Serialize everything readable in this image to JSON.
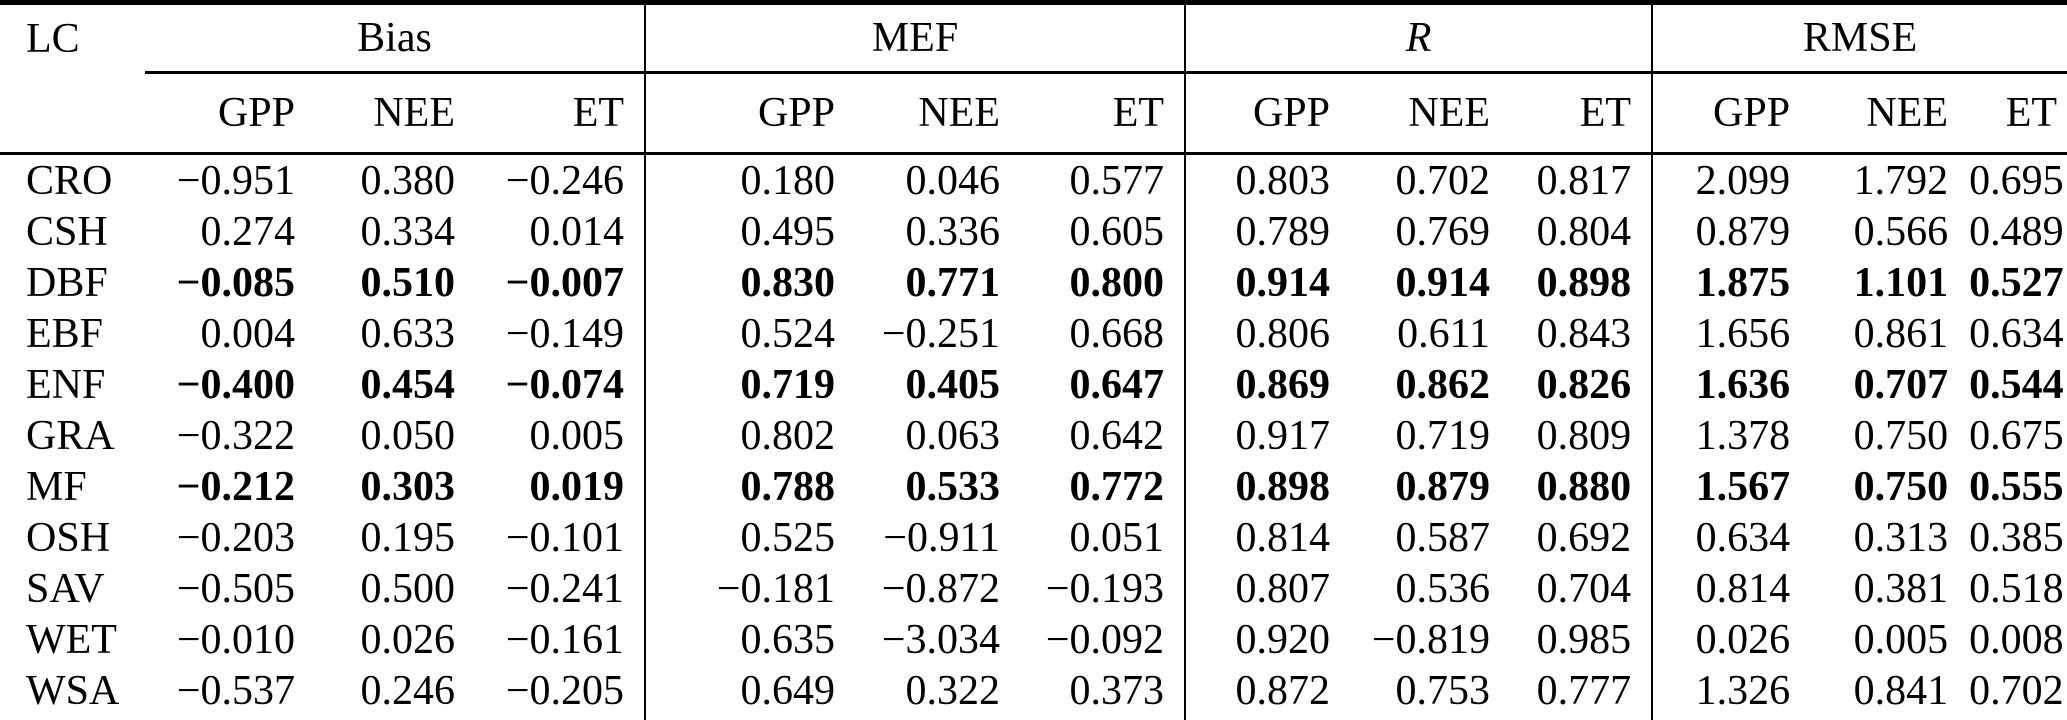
{
  "table": {
    "corner_label": "LC",
    "groups": [
      {
        "label": "Bias",
        "italic": false,
        "columns": [
          "GPP",
          "NEE",
          "ET"
        ]
      },
      {
        "label": "MEF",
        "italic": false,
        "columns": [
          "GPP",
          "NEE",
          "ET"
        ]
      },
      {
        "label": "R",
        "italic": true,
        "columns": [
          "GPP",
          "NEE",
          "ET"
        ]
      },
      {
        "label": "RMSE",
        "italic": false,
        "columns": [
          "GPP",
          "NEE",
          "ET"
        ]
      }
    ],
    "rows": [
      {
        "label": "CRO",
        "bold": false,
        "values": [
          "−0.951",
          "0.380",
          "−0.246",
          "0.180",
          "0.046",
          "0.577",
          "0.803",
          "0.702",
          "0.817",
          "2.099",
          "1.792",
          "0.695"
        ]
      },
      {
        "label": "CSH",
        "bold": false,
        "values": [
          "0.274",
          "0.334",
          "0.014",
          "0.495",
          "0.336",
          "0.605",
          "0.789",
          "0.769",
          "0.804",
          "0.879",
          "0.566",
          "0.489"
        ]
      },
      {
        "label": "DBF",
        "bold": true,
        "values": [
          "−0.085",
          "0.510",
          "−0.007",
          "0.830",
          "0.771",
          "0.800",
          "0.914",
          "0.914",
          "0.898",
          "1.875",
          "1.101",
          "0.527"
        ]
      },
      {
        "label": "EBF",
        "bold": false,
        "values": [
          "0.004",
          "0.633",
          "−0.149",
          "0.524",
          "−0.251",
          "0.668",
          "0.806",
          "0.611",
          "0.843",
          "1.656",
          "0.861",
          "0.634"
        ]
      },
      {
        "label": "ENF",
        "bold": true,
        "values": [
          "−0.400",
          "0.454",
          "−0.074",
          "0.719",
          "0.405",
          "0.647",
          "0.869",
          "0.862",
          "0.826",
          "1.636",
          "0.707",
          "0.544"
        ]
      },
      {
        "label": "GRA",
        "bold": false,
        "values": [
          "−0.322",
          "0.050",
          "0.005",
          "0.802",
          "0.063",
          "0.642",
          "0.917",
          "0.719",
          "0.809",
          "1.378",
          "0.750",
          "0.675"
        ]
      },
      {
        "label": "MF",
        "bold": true,
        "values": [
          "−0.212",
          "0.303",
          "0.019",
          "0.788",
          "0.533",
          "0.772",
          "0.898",
          "0.879",
          "0.880",
          "1.567",
          "0.750",
          "0.555"
        ]
      },
      {
        "label": "OSH",
        "bold": false,
        "values": [
          "−0.203",
          "0.195",
          "−0.101",
          "0.525",
          "−0.911",
          "0.051",
          "0.814",
          "0.587",
          "0.692",
          "0.634",
          "0.313",
          "0.385"
        ]
      },
      {
        "label": "SAV",
        "bold": false,
        "values": [
          "−0.505",
          "0.500",
          "−0.241",
          "−0.181",
          "−0.872",
          "−0.193",
          "0.807",
          "0.536",
          "0.704",
          "0.814",
          "0.381",
          "0.518"
        ]
      },
      {
        "label": "WET",
        "bold": false,
        "values": [
          "−0.010",
          "0.026",
          "−0.161",
          "0.635",
          "−3.034",
          "−0.092",
          "0.920",
          "−0.819",
          "0.985",
          "0.026",
          "0.005",
          "0.008"
        ]
      },
      {
        "label": "WSA",
        "bold": false,
        "values": [
          "−0.537",
          "0.246",
          "−0.205",
          "0.649",
          "0.322",
          "0.373",
          "0.872",
          "0.753",
          "0.777",
          "1.326",
          "0.841",
          "0.702"
        ]
      }
    ]
  }
}
